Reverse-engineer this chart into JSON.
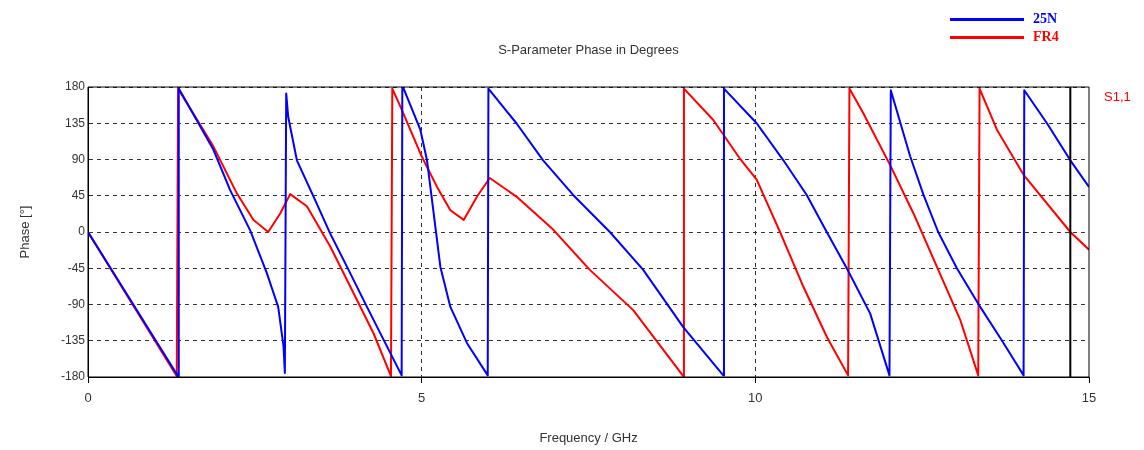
{
  "chart_data": {
    "type": "line",
    "title": "S-Parameter Phase in Degrees",
    "xlabel": "Frequency / GHz",
    "ylabel": "Phase [°]",
    "xlim": [
      0,
      15
    ],
    "xticks": [
      0,
      5,
      10,
      15
    ],
    "ylim": [
      -180,
      180
    ],
    "yticks": [
      -180,
      -135,
      -90,
      -45,
      0,
      45,
      90,
      135,
      180
    ],
    "grid": true,
    "legend": "top right",
    "line_style": "solid",
    "marker": "none",
    "annotations": [
      "S1,1"
    ],
    "ref_lines": [
      {
        "axis": "x",
        "value": 14.72,
        "color": "#000000",
        "line_style": "solid"
      }
    ],
    "series": [
      {
        "name": "25N",
        "color": "#0000ff",
        "x": [
          0,
          1.35,
          1.36,
          1.88,
          2.13,
          2.43,
          2.68,
          2.85,
          2.93,
          2.95,
          2.97,
          3.0,
          3.13,
          3.38,
          3.63,
          3.88,
          4.18,
          4.48,
          4.7,
          4.71,
          4.73,
          4.98,
          5.08,
          5.18,
          5.28,
          5.43,
          5.68,
          5.99,
          6.0,
          6.42,
          6.82,
          7.27,
          7.82,
          8.32,
          8.92,
          9.52,
          9.53,
          10.02,
          10.42,
          10.77,
          11.07,
          11.37,
          11.72,
          12.01,
          12.03,
          12.32,
          12.52,
          12.74,
          13.02,
          13.37,
          13.69,
          14.02,
          14.03,
          14.37,
          14.72,
          15.0
        ],
        "values": [
          0,
          -179,
          178,
          102,
          52,
          2,
          -51,
          -93,
          -142,
          -175,
          172,
          143,
          89,
          44,
          -2,
          -43,
          -93,
          -142,
          -178,
          180,
          178,
          127,
          89,
          23,
          -43,
          -93,
          -138,
          -178,
          178,
          135,
          89,
          46,
          0,
          -47,
          -118,
          -178,
          178,
          135,
          89,
          46,
          0,
          -45,
          -101,
          -178,
          176,
          94,
          46,
          0,
          -45,
          -93,
          -134,
          -178,
          176,
          135,
          89,
          56
        ]
      },
      {
        "name": "FR4",
        "color": "#ff0000",
        "x": [
          0,
          1.33,
          1.35,
          1.88,
          2.23,
          2.48,
          2.7,
          2.88,
          3.03,
          3.28,
          3.63,
          3.98,
          4.28,
          4.54,
          4.56,
          4.68,
          5.0,
          5.23,
          5.43,
          5.63,
          5.83,
          6.02,
          6.42,
          6.97,
          7.52,
          8.17,
          8.92,
          8.93,
          9.37,
          9.77,
          10.02,
          10.37,
          10.72,
          11.07,
          11.39,
          11.41,
          11.62,
          12.02,
          12.37,
          12.72,
          13.07,
          13.34,
          13.36,
          13.62,
          14.02,
          14.72,
          15.0
        ],
        "values": [
          0,
          -179,
          178,
          106,
          48,
          15,
          0,
          23,
          47,
          32,
          -18,
          -76,
          -126,
          -179,
          178,
          156,
          94,
          56,
          27,
          15,
          44,
          67,
          44,
          3,
          -47,
          -97,
          -179,
          178,
          139,
          91,
          65,
          0,
          -68,
          -130,
          -178,
          178,
          147,
          83,
          23,
          -43,
          -109,
          -178,
          178,
          127,
          71,
          0,
          -22
        ]
      }
    ]
  }
}
